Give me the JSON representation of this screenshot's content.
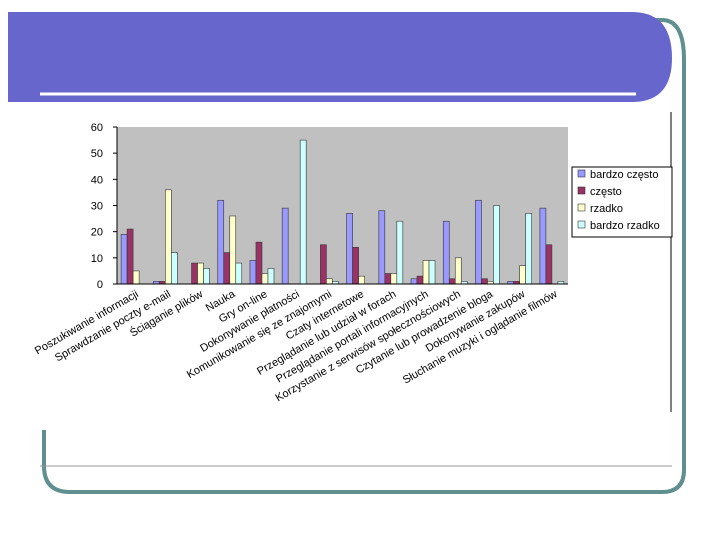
{
  "theme": {
    "header_color": "#6666CC",
    "frame_color": "#5F8F8F",
    "plot_bg": "#C0C0C0"
  },
  "chart_data": {
    "type": "bar",
    "title": "",
    "xlabel": "",
    "ylabel": "",
    "ylim": [
      0,
      60
    ],
    "yticks": [
      0,
      10,
      20,
      30,
      40,
      50,
      60
    ],
    "grid": false,
    "legend_position": "right",
    "categories": [
      "Poszukiwanie informacji",
      "Sprawdzanie poczty e-mail",
      "Ściąganie plików",
      "Nauka",
      "Gry on-line",
      "Dokonywanie płatności",
      "Komunikowanie się ze znajomymi",
      "Czaty internetowe",
      "Przeglądanie lub udział w forach",
      "Przeglądanie portali informacyjnych",
      "Korzystanie z serwisów społecznościowych",
      "Czytanie lub prowadzenie bloga",
      "Dokonywanie zakupów",
      "Słuchanie muzyki i oglądanie filmów"
    ],
    "series": [
      {
        "name": "bardzo często",
        "color": "#9999FF",
        "values": [
          19,
          1,
          0,
          32,
          9,
          29,
          0,
          27,
          28,
          2,
          24,
          32,
          1,
          29
        ]
      },
      {
        "name": "często",
        "color": "#993366",
        "values": [
          21,
          1,
          8,
          12,
          16,
          0,
          15,
          14,
          4,
          3,
          2,
          2,
          1,
          15
        ]
      },
      {
        "name": "rzadko",
        "color": "#FFFFCC",
        "values": [
          5,
          36,
          8,
          26,
          4,
          0,
          2,
          3,
          4,
          9,
          10,
          1,
          7,
          0
        ]
      },
      {
        "name": "bardzo rzadko",
        "color": "#CCFFFF",
        "values": [
          0,
          12,
          6,
          8,
          6,
          55,
          1,
          0,
          24,
          9,
          1,
          30,
          27,
          1
        ]
      }
    ]
  }
}
